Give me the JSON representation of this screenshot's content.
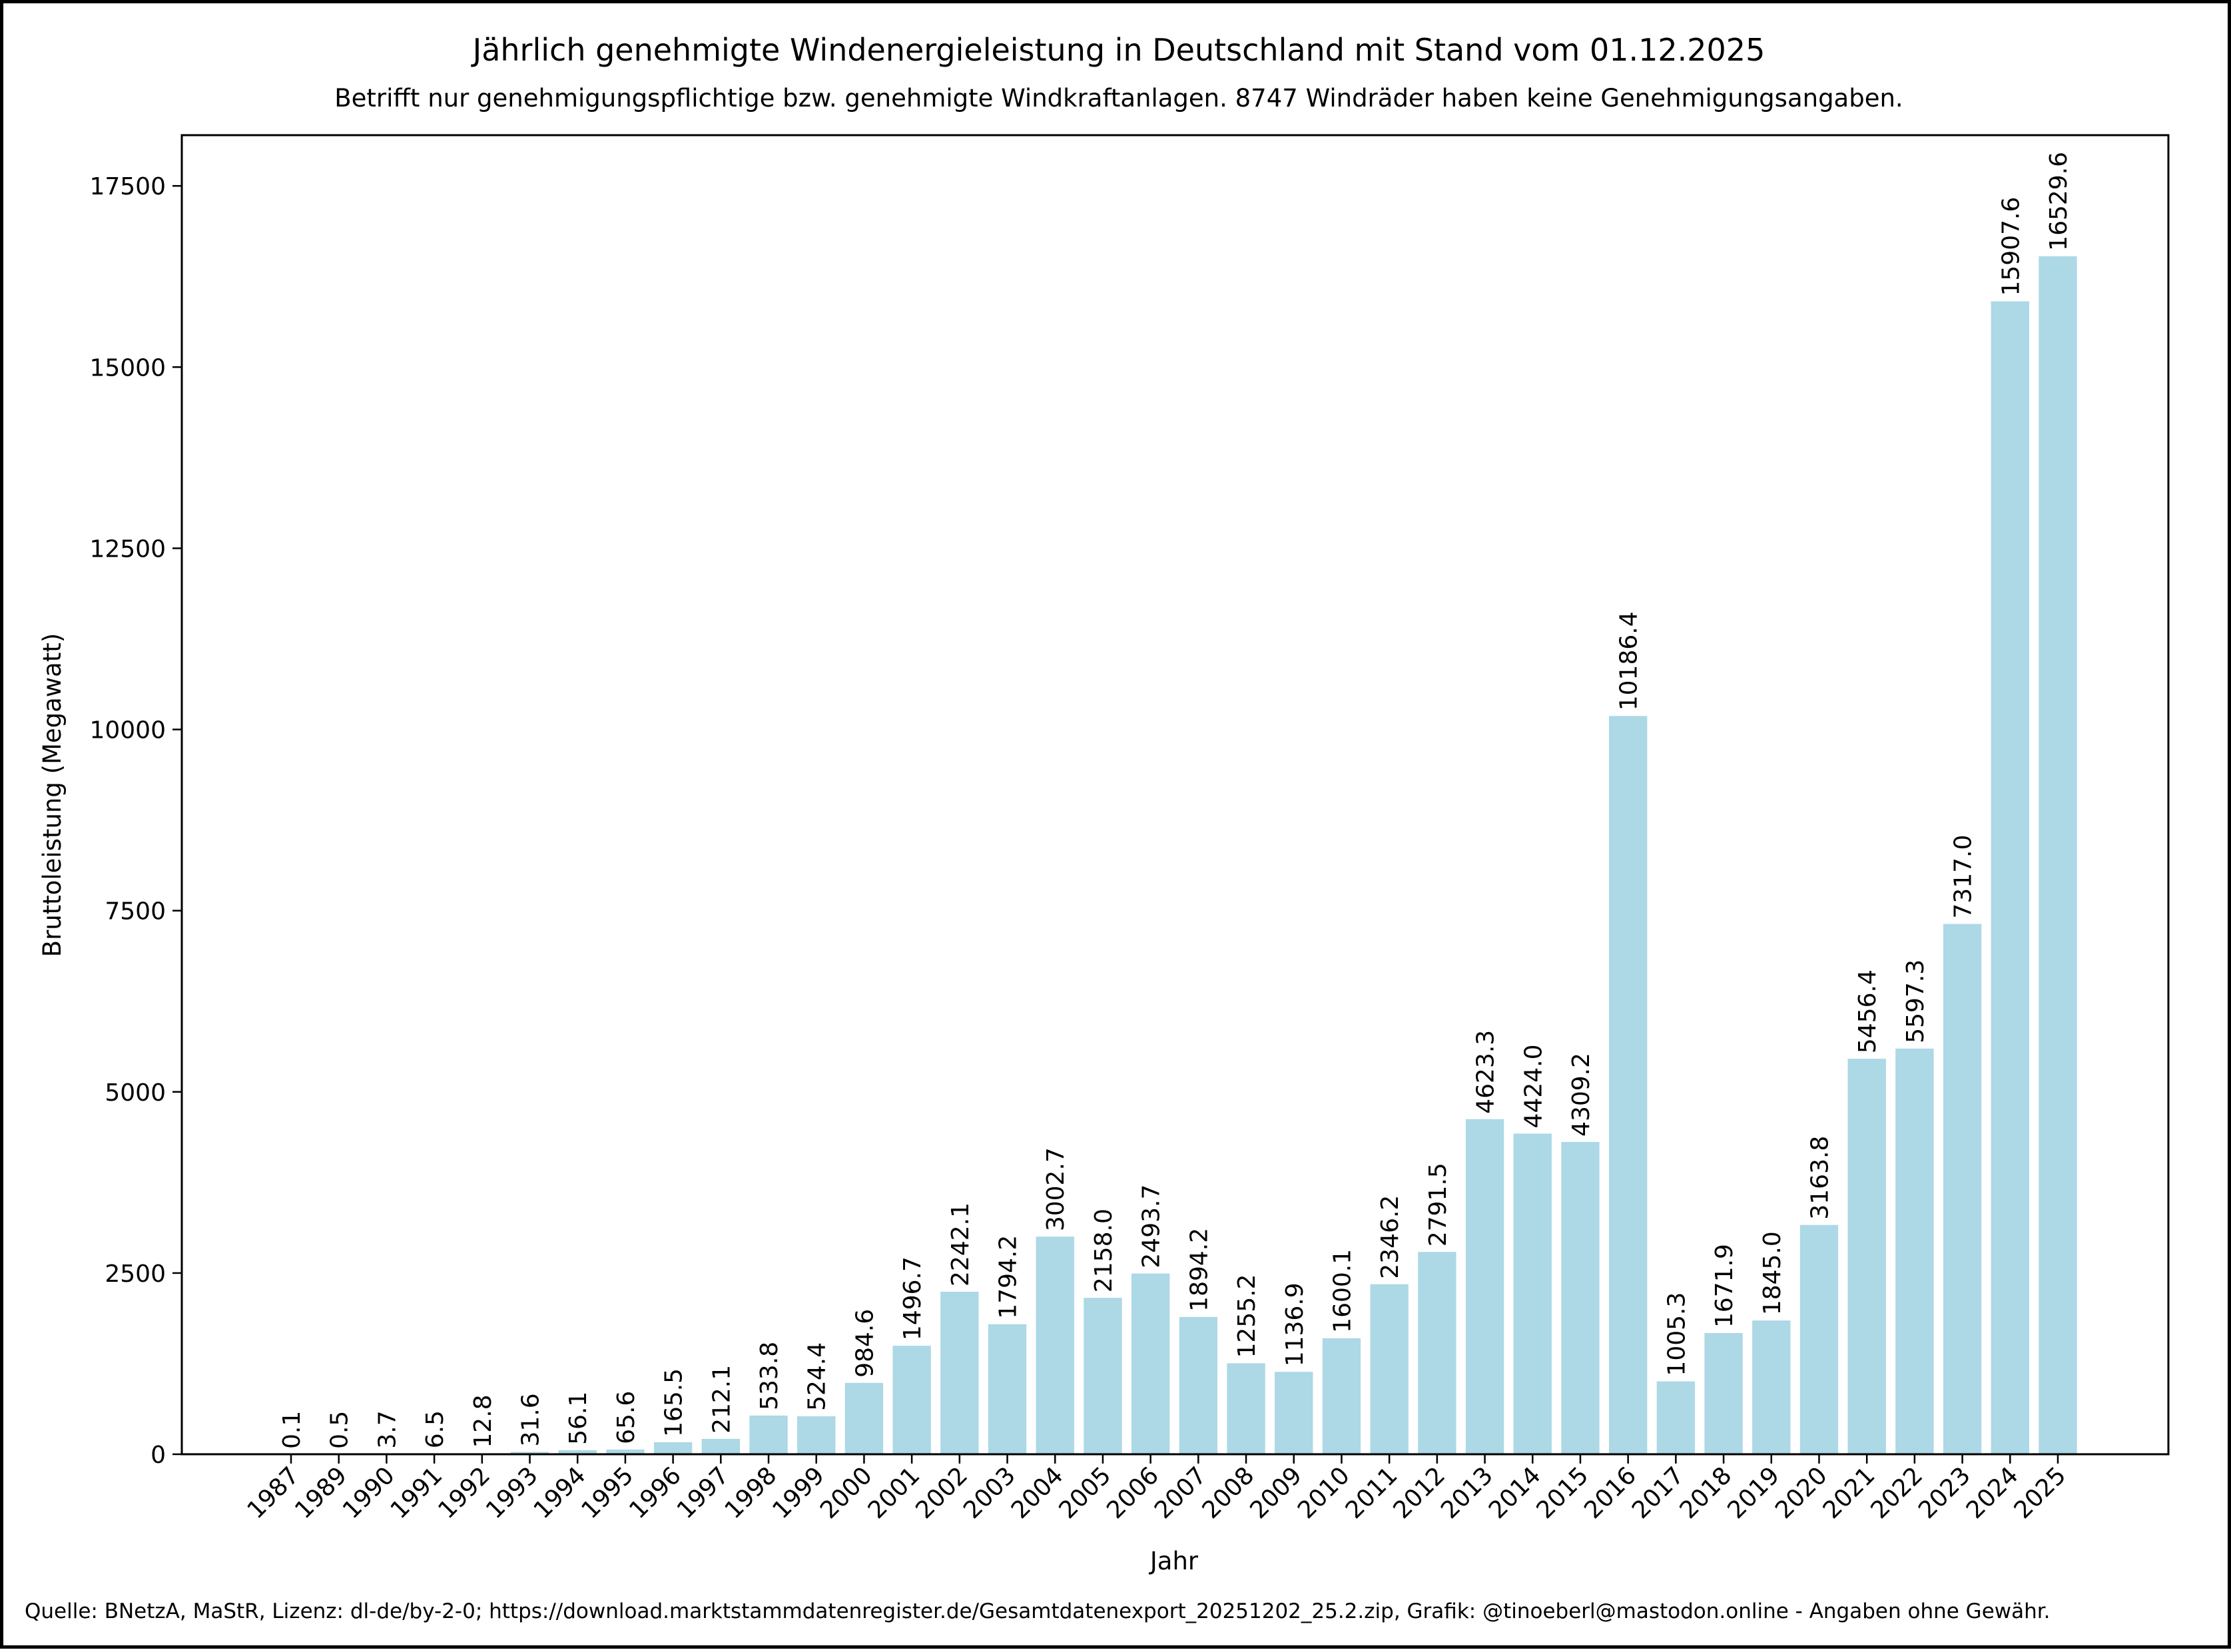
{
  "chart_data": {
    "type": "bar",
    "title": "Jährlich genehmigte Windenergieleistung in Deutschland mit Stand vom 01.12.2025",
    "subtitle": "Betrifft nur genehmigungspflichtige bzw. genehmigte Windkraftanlagen. 8747 Windräder haben keine Genehmigungsangaben.",
    "xlabel": "Jahr",
    "ylabel": "Bruttoleistung (Megawatt)",
    "categories": [
      "1987",
      "1989",
      "1990",
      "1991",
      "1992",
      "1993",
      "1994",
      "1995",
      "1996",
      "1997",
      "1998",
      "1999",
      "2000",
      "2001",
      "2002",
      "2003",
      "2004",
      "2005",
      "2006",
      "2007",
      "2008",
      "2009",
      "2010",
      "2011",
      "2012",
      "2013",
      "2014",
      "2015",
      "2016",
      "2017",
      "2018",
      "2019",
      "2020",
      "2021",
      "2022",
      "2023",
      "2024",
      "2025"
    ],
    "values": [
      0.1,
      0.5,
      3.7,
      6.5,
      12.8,
      31.6,
      56.1,
      65.6,
      165.5,
      212.1,
      533.8,
      524.4,
      984.6,
      1496.7,
      2242.1,
      1794.2,
      3002.7,
      2158.0,
      2493.7,
      1894.2,
      1255.2,
      1136.9,
      1600.1,
      2346.2,
      2791.5,
      4623.3,
      4424.0,
      4309.2,
      10186.4,
      1005.3,
      1671.9,
      1845.0,
      3163.8,
      5456.4,
      5597.3,
      7317.0,
      15907.6,
      16529.6
    ],
    "data_labels": [
      "0.1",
      "0.5",
      "3.7",
      "6.5",
      "12.8",
      "31.6",
      "56.1",
      "65.6",
      "165.5",
      "212.1",
      "533.8",
      "524.4",
      "984.6",
      "1496.7",
      "2242.1",
      "1794.2",
      "3002.7",
      "2158.0",
      "2493.7",
      "1894.2",
      "1255.2",
      "1136.9",
      "1600.1",
      "2346.2",
      "2791.5",
      "4623.3",
      "4424.0",
      "4309.2",
      "10186.4",
      "1005.3",
      "1671.9",
      "1845.0",
      "3163.8",
      "5456.4",
      "5597.3",
      "7317.0",
      "15907.6",
      "16529.6"
    ],
    "yticks": [
      0,
      2500,
      5000,
      7500,
      10000,
      12500,
      15000,
      17500
    ],
    "ytick_labels": [
      "0",
      "2500",
      "5000",
      "7500",
      "10000",
      "12500",
      "15000",
      "17500"
    ],
    "ylim": [
      0,
      18200
    ],
    "grid": false,
    "legend": "none",
    "bar_color": "#ADD8E6",
    "footer": "Quelle: BNetzA, MaStR, Lizenz: dl-de/by-2-0; https://download.marktstammdatenregister.de/Gesamtdatenexport_20251202_25.2.zip, Grafik: @tinoeberl@mastodon.online - Angaben ohne Gewähr."
  }
}
